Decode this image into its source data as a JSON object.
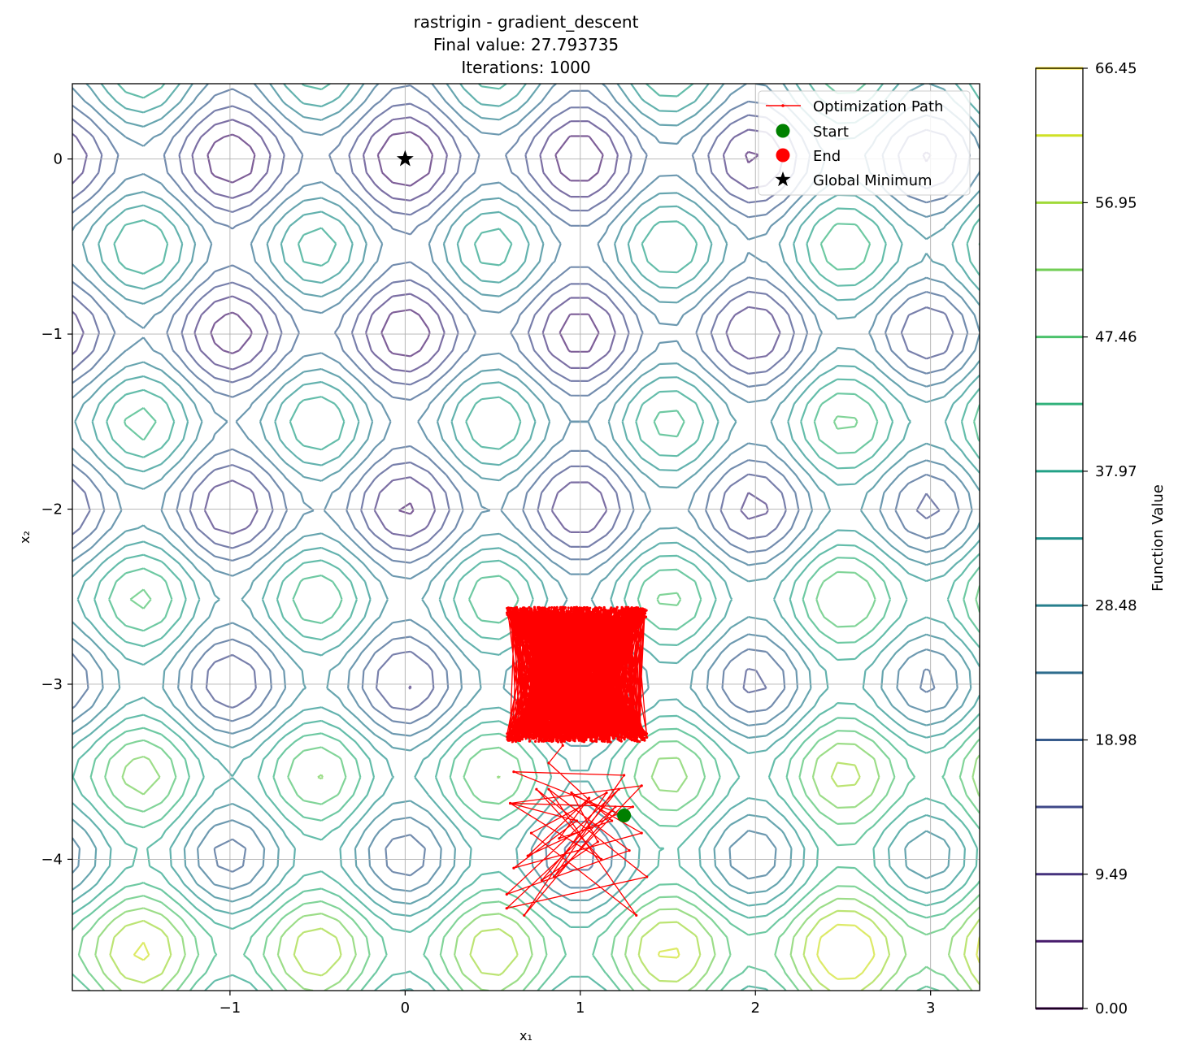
{
  "chart_data": {
    "type": "contour",
    "title_lines": [
      "rastrigin - gradient_descent",
      "Final value: 27.793735",
      "Iterations: 1000"
    ],
    "xlabel": "x₁",
    "ylabel": "x₂",
    "xlim": [
      -1.9,
      3.28
    ],
    "ylim": [
      -4.75,
      0.43
    ],
    "x_ticks": [
      -1,
      0,
      1,
      2,
      3
    ],
    "x_tick_labels": [
      "−1",
      "0",
      "1",
      "2",
      "3"
    ],
    "y_ticks": [
      0,
      -1,
      -2,
      -3,
      -4
    ],
    "y_tick_labels": [
      "0",
      "−1",
      "−2",
      "−3",
      "−4"
    ],
    "grid": true,
    "function": "rastrigin",
    "contour_levels": [
      4.75,
      9.49,
      14.24,
      18.98,
      23.73,
      28.48,
      33.22,
      37.97,
      42.72,
      47.46,
      52.21,
      56.95,
      61.7,
      66.45
    ],
    "colormap": "viridis",
    "contour_alpha": 0.7,
    "colorbar": {
      "label": "Function Value",
      "range": [
        0,
        66.45
      ],
      "ticks": [
        0.0,
        9.49,
        18.98,
        28.48,
        37.97,
        47.46,
        56.95,
        66.45
      ],
      "tick_labels": [
        "0.00",
        "9.49",
        "18.98",
        "28.48",
        "37.97",
        "47.46",
        "56.95",
        "66.45"
      ]
    },
    "legend": {
      "placement": "top-right",
      "entries": [
        {
          "label": "Optimization Path",
          "marker": "line",
          "color": "#ff0000"
        },
        {
          "label": "Start",
          "marker": "circle",
          "color": "#008000"
        },
        {
          "label": "End",
          "marker": "circle",
          "color": "#ff0000"
        },
        {
          "label": "Global Minimum",
          "marker": "star",
          "color": "#000000"
        }
      ]
    },
    "start": {
      "x": 1.25,
      "y": -3.75
    },
    "end": {
      "x": 0.98,
      "y": -2.9
    },
    "global_minimum": {
      "x": 0,
      "y": 0
    },
    "path_initial": [
      [
        1.25,
        -3.75
      ],
      [
        0.62,
        -3.5
      ],
      [
        1.25,
        -3.52
      ],
      [
        0.85,
        -4.1
      ],
      [
        1.35,
        -3.58
      ],
      [
        0.6,
        -3.68
      ],
      [
        1.12,
        -4.0
      ],
      [
        0.75,
        -3.6
      ],
      [
        1.38,
        -4.1
      ],
      [
        0.58,
        -4.28
      ],
      [
        1.2,
        -3.7
      ],
      [
        0.68,
        -4.32
      ],
      [
        1.15,
        -3.62
      ],
      [
        0.72,
        -3.85
      ],
      [
        1.32,
        -4.32
      ],
      [
        0.82,
        -3.6
      ],
      [
        1.28,
        -3.95
      ],
      [
        0.58,
        -4.2
      ],
      [
        1.22,
        -3.6
      ],
      [
        0.78,
        -4.12
      ],
      [
        1.1,
        -3.9
      ],
      [
        0.95,
        -3.62
      ],
      [
        1.35,
        -3.85
      ],
      [
        0.62,
        -4.05
      ],
      [
        0.98,
        -3.78
      ],
      [
        0.6,
        -3.68
      ],
      [
        1.3,
        -3.7
      ],
      [
        0.7,
        -3.98
      ],
      [
        1.05,
        -3.65
      ],
      [
        0.88,
        -3.88
      ],
      [
        1.18,
        -3.78
      ],
      [
        0.82,
        -3.45
      ],
      [
        0.9,
        -3.35
      ]
    ],
    "path_oscillation": {
      "x_range": [
        0.58,
        1.38
      ],
      "y_range": [
        -3.33,
        -2.56
      ]
    },
    "path_color": "#ff0000"
  }
}
